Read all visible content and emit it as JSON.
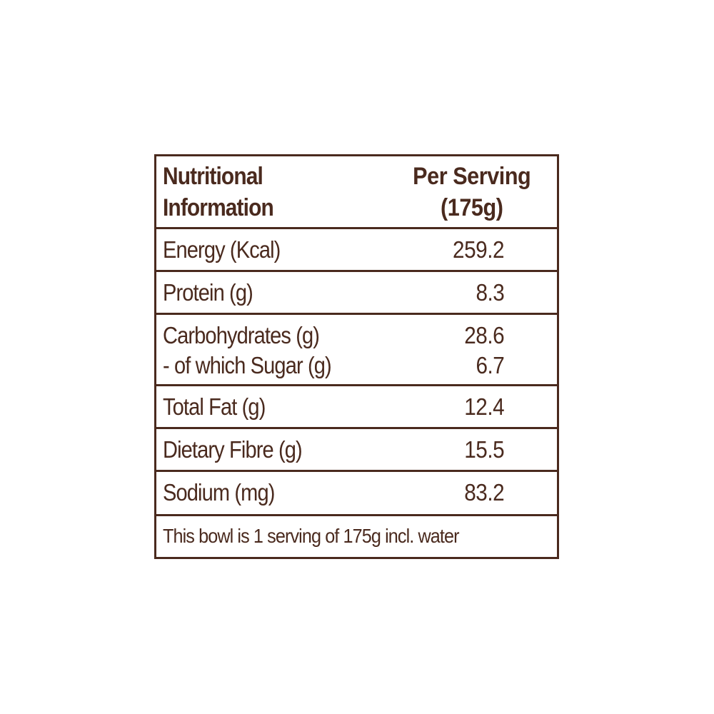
{
  "table": {
    "header": {
      "label_line1": "Nutritional",
      "label_line2": "Information",
      "value_line1": "Per Serving",
      "value_line2": "(175g)"
    },
    "rows": [
      {
        "label": "Energy (Kcal)",
        "value": "259.2"
      },
      {
        "label": "Protein (g)",
        "value": "8.3"
      },
      {
        "label": "Carbohydrates (g)",
        "value": "28.6",
        "sub_label": "- of which Sugar (g)",
        "sub_value": "6.7"
      },
      {
        "label": "Total Fat (g)",
        "value": "12.4"
      },
      {
        "label": "Dietary Fibre (g)",
        "value": "15.5"
      },
      {
        "label": "Sodium (mg)",
        "value": "83.2"
      }
    ],
    "footer": "This bowl is 1 serving of 175g incl. water"
  },
  "colors": {
    "text": "#4a2a1e",
    "border": "#4a2a1e",
    "background": "#ffffff"
  }
}
